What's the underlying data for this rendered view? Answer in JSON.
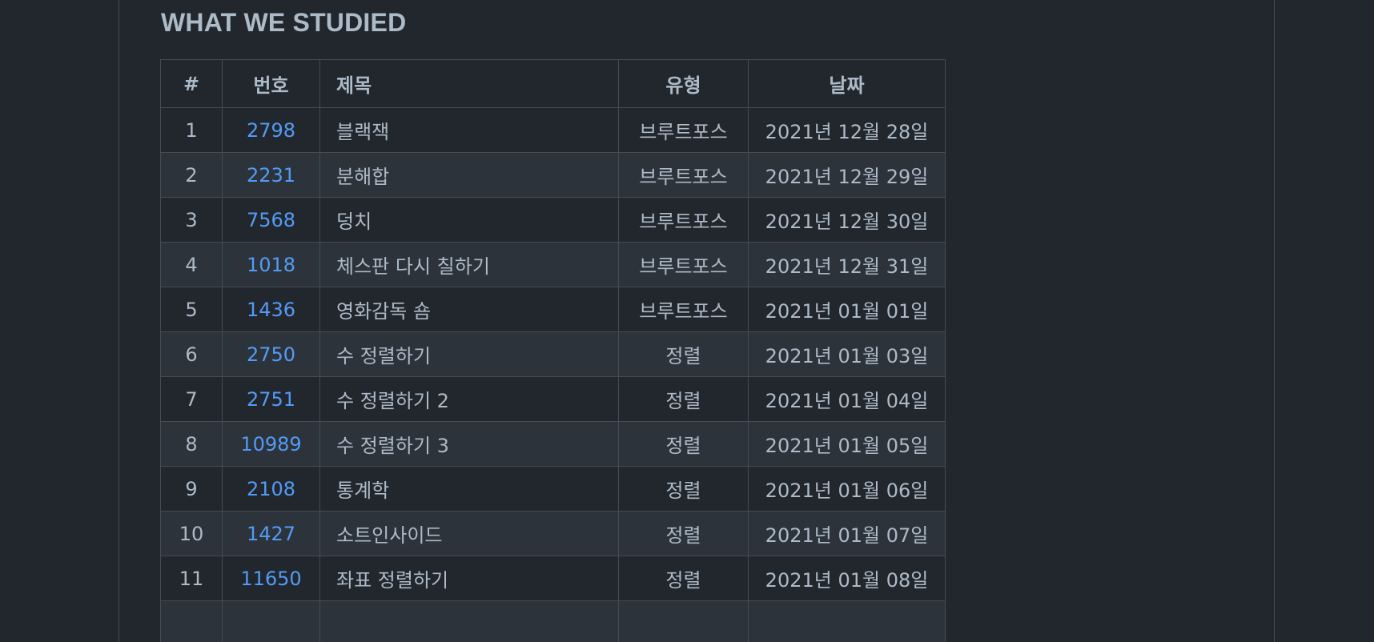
{
  "section": {
    "heading": "WHAT WE STUDIED"
  },
  "table": {
    "headers": {
      "index": "#",
      "number": "번호",
      "title": "제목",
      "type": "유형",
      "date": "날짜"
    },
    "rows": [
      {
        "index": "1",
        "number": "2798",
        "title": "블랙잭",
        "type": "브루트포스",
        "date": "2021년 12월 28일"
      },
      {
        "index": "2",
        "number": "2231",
        "title": "분해합",
        "type": "브루트포스",
        "date": "2021년 12월 29일"
      },
      {
        "index": "3",
        "number": "7568",
        "title": "덩치",
        "type": "브루트포스",
        "date": "2021년 12월 30일"
      },
      {
        "index": "4",
        "number": "1018",
        "title": "체스판 다시 칠하기",
        "type": "브루트포스",
        "date": "2021년 12월 31일"
      },
      {
        "index": "5",
        "number": "1436",
        "title": "영화감독 숌",
        "type": "브루트포스",
        "date": "2021년 01월 01일"
      },
      {
        "index": "6",
        "number": "2750",
        "title": "수 정렬하기",
        "type": "정렬",
        "date": "2021년 01월 03일"
      },
      {
        "index": "7",
        "number": "2751",
        "title": "수 정렬하기 2",
        "type": "정렬",
        "date": "2021년 01월 04일"
      },
      {
        "index": "8",
        "number": "10989",
        "title": "수 정렬하기 3",
        "type": "정렬",
        "date": "2021년 01월 05일"
      },
      {
        "index": "9",
        "number": "2108",
        "title": "통계학",
        "type": "정렬",
        "date": "2021년 01월 06일"
      },
      {
        "index": "10",
        "number": "1427",
        "title": "소트인사이드",
        "type": "정렬",
        "date": "2021년 01월 07일"
      },
      {
        "index": "11",
        "number": "11650",
        "title": "좌표 정렬하기",
        "type": "정렬",
        "date": "2021년 01월 08일"
      },
      {
        "index": "",
        "number": "",
        "title": "",
        "type": "",
        "date": ""
      }
    ]
  },
  "colors": {
    "background": "#22272e",
    "row_alt": "#2d333b",
    "border": "#444c56",
    "text": "#adbac7",
    "link": "#539bf5"
  }
}
